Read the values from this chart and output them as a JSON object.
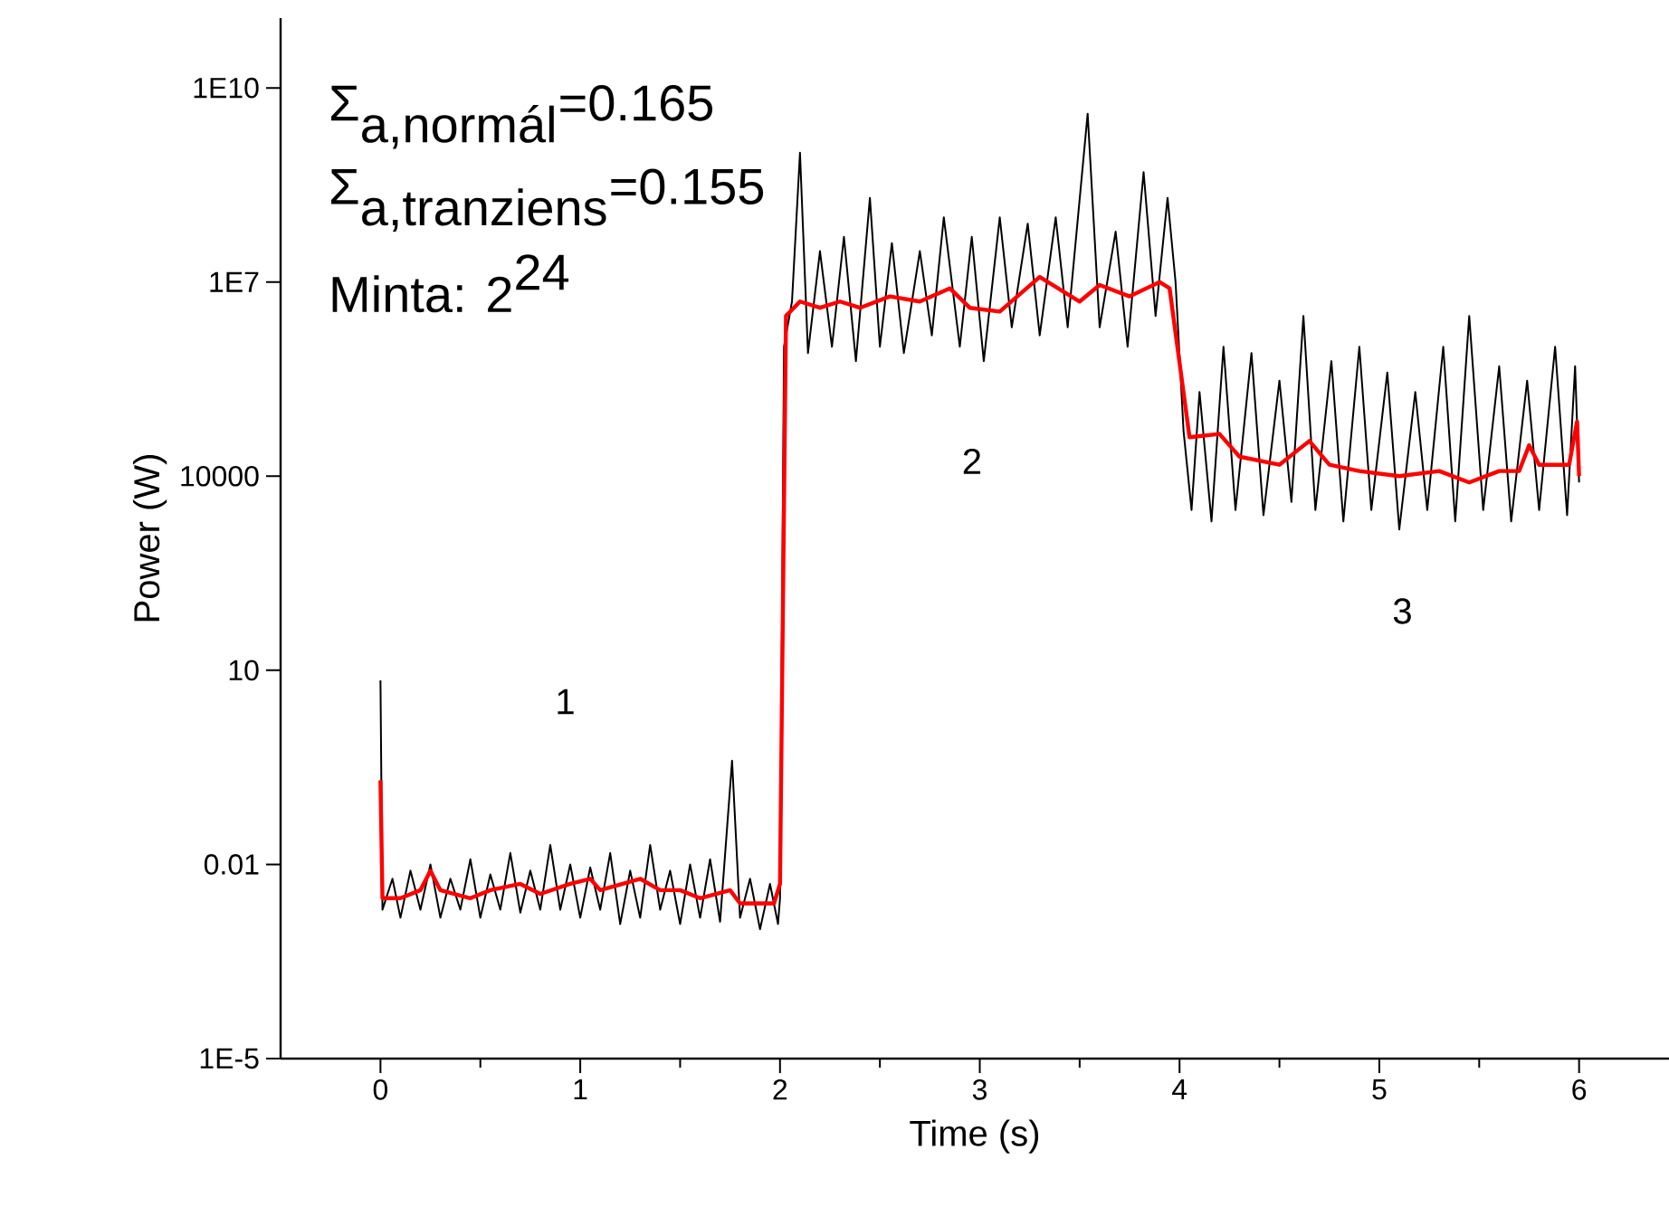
{
  "chart_data": {
    "type": "line",
    "xlabel": "Time (s)",
    "ylabel": "Power (W)",
    "log": "y",
    "grid": false,
    "marker": "none",
    "line_style": "solid",
    "xlim": [
      -0.5,
      6.45
    ],
    "ylim": [
      1e-05,
      120000000000.0
    ],
    "xticks": [
      0,
      1,
      2,
      3,
      4,
      5,
      6
    ],
    "yticks": [
      {
        "value": 1e-05,
        "label": "1E-5"
      },
      0.01,
      10,
      10000,
      {
        "value": 10000000.0,
        "label": "1E7"
      },
      {
        "value": 10000000000.0,
        "label": "1E10"
      }
    ],
    "series": [
      {
        "color": "#000000",
        "x": [
          0,
          0.01,
          0.06,
          0.1,
          0.15,
          0.2,
          0.25,
          0.3,
          0.35,
          0.4,
          0.45,
          0.5,
          0.55,
          0.6,
          0.65,
          0.7,
          0.75,
          0.8,
          0.85,
          0.9,
          0.95,
          1.0,
          1.05,
          1.1,
          1.15,
          1.2,
          1.25,
          1.3,
          1.35,
          1.4,
          1.45,
          1.5,
          1.55,
          1.6,
          1.65,
          1.7,
          1.76,
          1.8,
          1.85,
          1.9,
          1.95,
          1.99,
          2.0,
          2.02,
          2.06,
          2.1,
          2.14,
          2.2,
          2.26,
          2.32,
          2.38,
          2.45,
          2.5,
          2.56,
          2.62,
          2.7,
          2.76,
          2.82,
          2.9,
          2.96,
          3.02,
          3.1,
          3.16,
          3.24,
          3.3,
          3.38,
          3.44,
          3.54,
          3.6,
          3.68,
          3.74,
          3.82,
          3.88,
          3.94,
          3.98,
          4.02,
          4.06,
          4.1,
          4.16,
          4.22,
          4.28,
          4.36,
          4.42,
          4.5,
          4.56,
          4.62,
          4.68,
          4.76,
          4.82,
          4.9,
          4.96,
          5.04,
          5.1,
          5.18,
          5.24,
          5.32,
          5.38,
          5.45,
          5.52,
          5.6,
          5.66,
          5.74,
          5.8,
          5.88,
          5.94,
          5.98,
          6.0
        ],
        "values": [
          7,
          0.002,
          0.006,
          0.0015,
          0.008,
          0.002,
          0.01,
          0.0015,
          0.006,
          0.002,
          0.012,
          0.0015,
          0.007,
          0.002,
          0.015,
          0.0018,
          0.008,
          0.002,
          0.02,
          0.002,
          0.01,
          0.0015,
          0.009,
          0.002,
          0.015,
          0.0012,
          0.008,
          0.0015,
          0.02,
          0.002,
          0.008,
          0.0012,
          0.01,
          0.0015,
          0.012,
          0.0013,
          0.4,
          0.0015,
          0.006,
          0.001,
          0.005,
          0.0012,
          0.003,
          1000000.0,
          5000000.0,
          1000000000.0,
          800000.0,
          30000000.0,
          1000000.0,
          50000000.0,
          600000.0,
          200000000.0,
          1000000.0,
          40000000.0,
          800000.0,
          30000000.0,
          1500000.0,
          100000000.0,
          1000000.0,
          50000000.0,
          600000.0,
          100000000.0,
          2000000.0,
          80000000.0,
          1500000.0,
          100000000.0,
          2000000.0,
          4000000000.0,
          2000000.0,
          60000000.0,
          1000000.0,
          500000000.0,
          3000000.0,
          200000000.0,
          10000000.0,
          50000.0,
          3000.0,
          200000.0,
          2000.0,
          1000000.0,
          3000.0,
          800000.0,
          2500.0,
          300000.0,
          4000.0,
          3000000.0,
          3000.0,
          600000.0,
          2000.0,
          1000000.0,
          3000.0,
          400000.0,
          1500.0,
          200000.0,
          3000.0,
          1000000.0,
          2000.0,
          3000000.0,
          3000.0,
          500000.0,
          2000.0,
          300000.0,
          3000.0,
          1000000.0,
          2500.0,
          500000.0,
          8000.0
        ]
      },
      {
        "color": "#ff0000",
        "x": [
          0,
          0.01,
          0.1,
          0.2,
          0.25,
          0.3,
          0.45,
          0.55,
          0.7,
          0.8,
          0.95,
          1.05,
          1.1,
          1.3,
          1.4,
          1.5,
          1.6,
          1.75,
          1.8,
          1.97,
          2.0,
          2.03,
          2.1,
          2.2,
          2.3,
          2.4,
          2.55,
          2.7,
          2.85,
          2.95,
          3.1,
          3.3,
          3.5,
          3.6,
          3.75,
          3.9,
          3.95,
          4.05,
          4.2,
          4.3,
          4.5,
          4.65,
          4.75,
          4.9,
          5.1,
          5.3,
          5.45,
          5.6,
          5.7,
          5.75,
          5.8,
          5.95,
          5.99,
          6.0
        ],
        "values": [
          0.2,
          0.003,
          0.003,
          0.004,
          0.008,
          0.004,
          0.003,
          0.004,
          0.005,
          0.0035,
          0.005,
          0.006,
          0.004,
          0.006,
          0.004,
          0.004,
          0.003,
          0.004,
          0.0025,
          0.0025,
          0.005,
          3000000.0,
          5000000.0,
          4000000.0,
          5000000.0,
          4000000.0,
          6000000.0,
          5000000.0,
          8000000.0,
          4000000.0,
          3500000.0,
          12000000.0,
          5000000.0,
          9000000.0,
          6000000.0,
          10000000.0,
          8000000.0,
          40000.0,
          45000.0,
          20000.0,
          15000.0,
          35000.0,
          15000.0,
          12000.0,
          10000.0,
          12000.0,
          8000.0,
          12000.0,
          12000.0,
          30000.0,
          15000.0,
          15000.0,
          70000.0,
          10000.0
        ]
      }
    ],
    "annotations": [
      "\\textrm{Σ}_{\\textrm{a,normál}}\\textrm{=0.165}",
      "\\textrm{Σ}_{\\textrm{a,tranziens}}\\textrm{=0.155}",
      "\\textrm{Minta: 2}^{\\textrm{24}}",
      "1",
      "2",
      "3"
    ]
  }
}
